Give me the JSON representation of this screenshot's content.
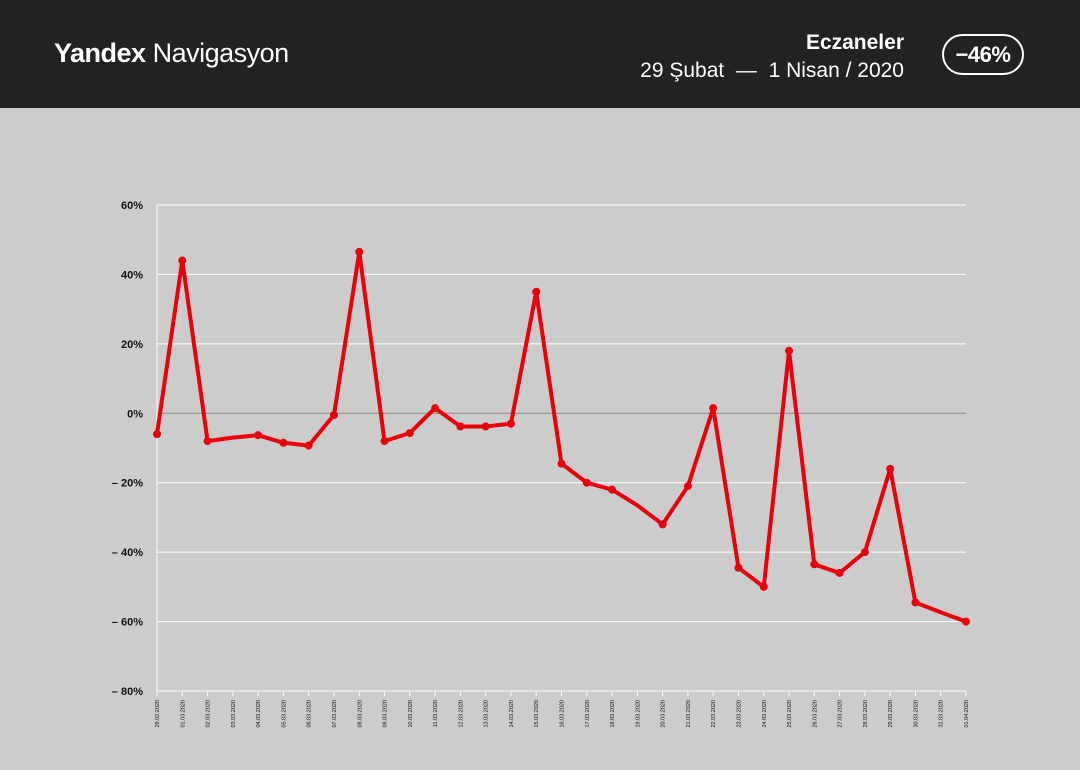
{
  "header": {
    "brand_bold": "Yandex",
    "brand_light": "Navigasyon",
    "category": "Eczaneler",
    "period": "29 Şubat  —  1 Nisan / 2020",
    "badge": "−46%"
  },
  "colors": {
    "header_bg": "#222222",
    "chart_bg": "#cccccc",
    "line": "#e8000b",
    "grid": "#ffffff",
    "zero_line": "#888888"
  },
  "chart_data": {
    "type": "line",
    "title": "",
    "xlabel": "",
    "ylabel": "",
    "ylim": [
      -80,
      60
    ],
    "y_ticks": [
      60,
      40,
      20,
      0,
      -20,
      -40,
      -60,
      -80
    ],
    "y_tick_labels": [
      "60%",
      "40%",
      "20%",
      "0%",
      "– 20%",
      "– 40%",
      "– 60%",
      "– 80%"
    ],
    "grid": true,
    "legend": "none",
    "categories": [
      "29.02.2020",
      "01.03.2020",
      "02.03.2020",
      "03.03.2020",
      "04.03.2020",
      "05.03.2020",
      "06.03.2020",
      "07.03.2020",
      "08.03.2020",
      "09.03.2020",
      "10.03.2020",
      "11.03.2020",
      "12.03.2020",
      "13.03.2020",
      "14.03.2020",
      "15.03.2020",
      "16.03.2020",
      "17.03.2020",
      "18.03.2020",
      "19.03.2020",
      "20.03.2020",
      "21.03.2020",
      "22.03.2020",
      "23.03.2020",
      "24.03.2020",
      "25.03.2020",
      "26.03.2020",
      "27.03.2020",
      "28.03.2020",
      "29.03.2020",
      "30.03.2020",
      "31.03.2020",
      "01.04.2020"
    ],
    "series": [
      {
        "values": [
          -6,
          44,
          -8,
          -7,
          -6.3,
          -8.5,
          -9.3,
          -0.5,
          46.5,
          -8,
          -5.7,
          1.5,
          -3.8,
          -3.8,
          -3,
          35,
          -14.5,
          -20,
          -22,
          -26.5,
          -32,
          -21,
          1.5,
          -44.5,
          -50,
          18,
          -43.5,
          -46,
          -40,
          -16,
          -54.5,
          -57.3,
          -60
        ],
        "markers": [
          true,
          true,
          true,
          false,
          true,
          true,
          true,
          true,
          true,
          true,
          true,
          true,
          true,
          true,
          true,
          true,
          true,
          true,
          true,
          false,
          true,
          true,
          true,
          true,
          true,
          true,
          true,
          true,
          true,
          true,
          true,
          false,
          true
        ]
      }
    ]
  }
}
